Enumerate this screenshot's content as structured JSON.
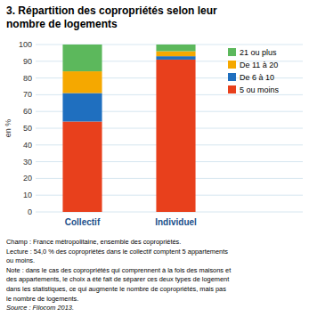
{
  "chart_data": {
    "type": "bar",
    "stacked": true,
    "title": "3. Répartition des copropriétés selon leur\nnombre de logements",
    "ylabel": "en %",
    "categories": [
      "Collectif",
      "Individuel"
    ],
    "series": [
      {
        "name": "5 ou moins",
        "color": "#E8401C",
        "values": [
          54,
          91
        ]
      },
      {
        "name": "De 6 à 10",
        "color": "#1F6FBF",
        "values": [
          17,
          2
        ]
      },
      {
        "name": "De 11 à 20",
        "color": "#F5A800",
        "values": [
          13,
          3
        ]
      },
      {
        "name": "21 ou plus",
        "color": "#5CB85C",
        "values": [
          16,
          4
        ]
      }
    ],
    "ylim": [
      0,
      100
    ],
    "yticks": [
      0,
      10,
      20,
      30,
      40,
      50,
      60,
      70,
      80,
      90,
      100
    ],
    "grid": true,
    "legend": "right",
    "annotations": [
      "Champ : France métropolitaine, ensemble des copropriétés.",
      "Lecture : 54,0 % des copropriétés dans le collectif comptent 5 appartements",
      "ou moins.",
      "Note : dans le cas des copropriétés qui comprennent à la fois des maisons et",
      "des appartements, le choix a été fait de séparer ces deux types de logement",
      "dans les statistiques, ce qui augmente le nombre de copropriétés, mais pas",
      "le nombre de logements.",
      "Source : Filocom 2013."
    ]
  }
}
